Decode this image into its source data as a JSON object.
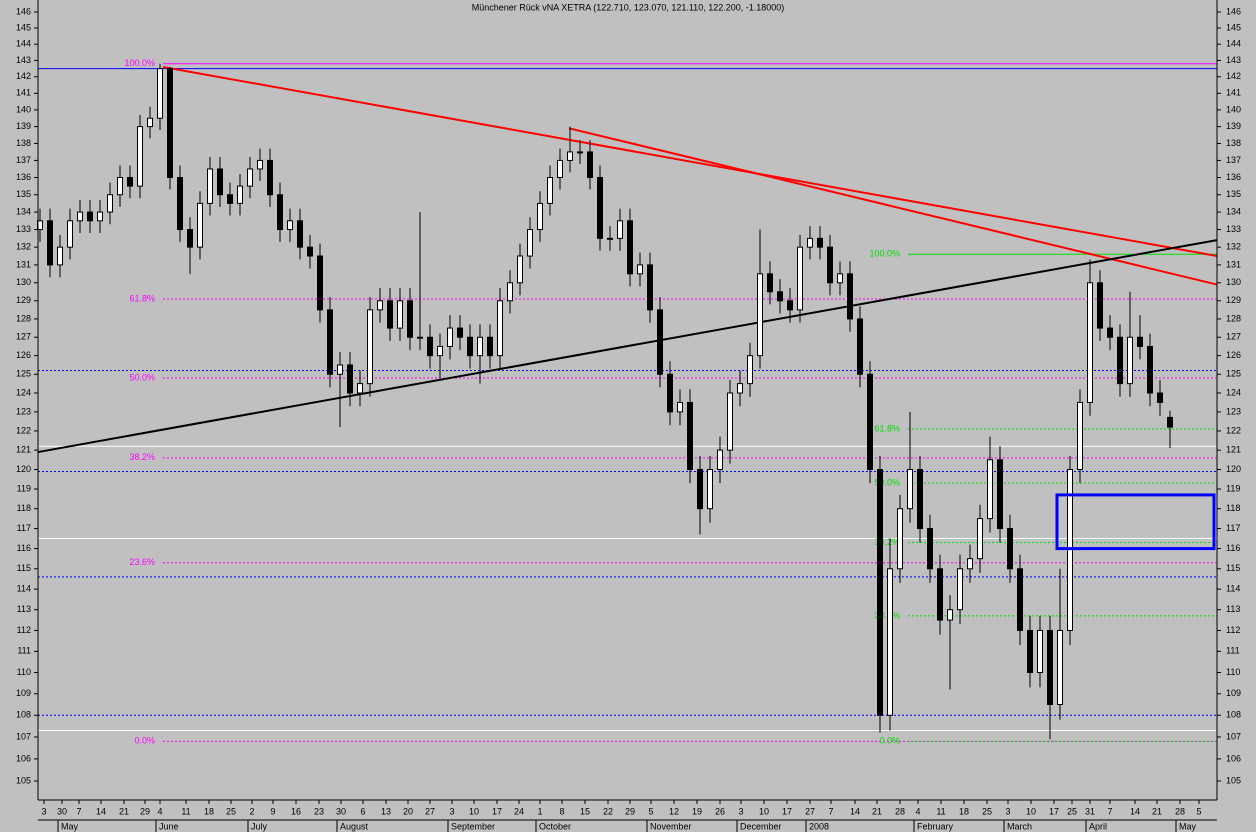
{
  "chart_data": {
    "type": "candlestick",
    "title": "Münchener Rück vNA  XETRA (122.710, 123.070, 121.110, 122.200, -1.18000)",
    "log_scale": true,
    "candle_up_color": "#ffffff",
    "candle_down_color": "#000000",
    "x": [
      0,
      1,
      2,
      3,
      4,
      5,
      6,
      7,
      8,
      9,
      10,
      11,
      12,
      13,
      14,
      15,
      16,
      17,
      18,
      19,
      20,
      21,
      22,
      23,
      24,
      25,
      26,
      27,
      28,
      29,
      30,
      31,
      32,
      33,
      34,
      35,
      36,
      37,
      38,
      39,
      40,
      41,
      42,
      43,
      44,
      45,
      46,
      47,
      48,
      49,
      50,
      51,
      52,
      53,
      54,
      55,
      56,
      57,
      58,
      59,
      60,
      61,
      62,
      63,
      64,
      65,
      66,
      67,
      68,
      69,
      70,
      71,
      72,
      73,
      74,
      75,
      76,
      77,
      78,
      79,
      80,
      81,
      82,
      83,
      84,
      85,
      86,
      87,
      88,
      89,
      90,
      91,
      92,
      93,
      94,
      95,
      96,
      97,
      98,
      99,
      100,
      101,
      102,
      103,
      104,
      105,
      106,
      107,
      108,
      109,
      110,
      111,
      112,
      113
    ],
    "open": [
      133,
      133.5,
      131,
      132,
      133.5,
      134,
      133.5,
      134,
      135,
      136,
      135.5,
      139,
      139.5,
      142.5,
      136,
      133,
      132,
      134.5,
      136.5,
      135,
      134.5,
      135.5,
      136.5,
      137,
      135,
      133,
      133.5,
      132,
      131.5,
      128.5,
      125,
      125.5,
      124,
      124.5,
      128.5,
      129,
      127.5,
      129,
      127,
      127,
      126,
      126.5,
      127.5,
      127,
      126,
      127,
      126,
      129,
      130,
      131.5,
      133,
      134.5,
      136,
      137,
      137.5,
      137.5,
      136,
      132.5,
      132.5,
      133.5,
      130.5,
      131,
      128.5,
      125,
      123,
      123.5,
      120,
      118,
      120,
      121,
      124,
      124.5,
      126,
      130.5,
      129.5,
      129,
      128.5,
      132,
      132.5,
      132,
      130,
      130.5,
      128,
      125,
      120,
      108,
      115,
      118,
      120,
      117,
      115,
      112.5,
      113,
      115,
      115.5,
      117.5,
      120.5,
      117,
      115,
      112,
      110,
      112,
      108.5,
      112,
      120,
      123.5,
      130,
      127.5,
      127,
      124.5,
      127,
      126.5,
      124,
      122.71
    ],
    "high": [
      134.2,
      134.2,
      132.7,
      134.2,
      134.7,
      134.7,
      134.7,
      135.7,
      136.7,
      136.7,
      139.7,
      140.2,
      142.8,
      142.6,
      136.7,
      133.7,
      135.2,
      137.2,
      137.2,
      135.7,
      136.2,
      137.2,
      137.7,
      137.7,
      135.7,
      134.2,
      134.2,
      132.7,
      132.2,
      129.2,
      126.2,
      126.2,
      125.2,
      129.2,
      129.7,
      129.7,
      129.7,
      129.7,
      134,
      127.7,
      127.2,
      128.2,
      128.2,
      127.7,
      127.7,
      127.7,
      129.7,
      130.7,
      132.2,
      133.7,
      135.2,
      136.7,
      137.7,
      139,
      138.2,
      138.2,
      136.7,
      133.2,
      134.2,
      134.2,
      131.7,
      131.7,
      129.2,
      125.7,
      124.2,
      124.2,
      120.7,
      120.7,
      121.7,
      124.7,
      125.2,
      126.7,
      133,
      131.2,
      130.2,
      129.7,
      132.7,
      133.2,
      133.2,
      132.7,
      131.2,
      131.2,
      128.7,
      125.7,
      120.7,
      116.5,
      118.7,
      123,
      120.7,
      117.7,
      115.7,
      113.7,
      115.7,
      116.2,
      118.2,
      121.7,
      121.2,
      117.7,
      115.7,
      112.7,
      112.7,
      112.7,
      115,
      120.7,
      124.2,
      131.3,
      130.7,
      128.2,
      127.7,
      129.5,
      128.2,
      127.2,
      124.7,
      123.07
    ],
    "low": [
      132.3,
      130.3,
      130.3,
      131.3,
      132.8,
      132.8,
      132.8,
      133.3,
      134.3,
      134.8,
      134.8,
      138.3,
      138.8,
      135.3,
      132.3,
      130.5,
      131.3,
      133.8,
      134.3,
      133.8,
      133.8,
      134.8,
      135.8,
      134.3,
      132.3,
      132.3,
      131.3,
      130.8,
      127.8,
      124.3,
      122.2,
      123.3,
      123.3,
      123.8,
      127.8,
      126.8,
      126.8,
      126.3,
      126.3,
      125.3,
      124.8,
      125.8,
      126.3,
      125.3,
      124.5,
      125.3,
      125.3,
      128.3,
      129.3,
      130.8,
      132.3,
      133.8,
      135.3,
      136.3,
      136.8,
      135.3,
      131.8,
      131.8,
      131.8,
      129.8,
      129.8,
      127.8,
      124.3,
      122.3,
      122.3,
      119.3,
      116.7,
      117.3,
      119.3,
      120.3,
      123.3,
      123.8,
      125.3,
      128.8,
      128.3,
      127.8,
      127.8,
      131.3,
      131.3,
      129.3,
      129.3,
      127.3,
      124.3,
      119.3,
      107.2,
      107.3,
      114.3,
      117.3,
      116.3,
      114.3,
      111.8,
      109.2,
      112.3,
      114.3,
      114.8,
      116.8,
      116.3,
      114.3,
      111.3,
      109.3,
      109.3,
      106.9,
      107.8,
      111.3,
      119.3,
      122.8,
      126.8,
      126.3,
      123.8,
      123.8,
      125.8,
      123.3,
      122.8,
      121.11
    ],
    "close": [
      133.5,
      131,
      132,
      133.5,
      134,
      133.5,
      134,
      135,
      136,
      135.5,
      139,
      139.5,
      142.5,
      136,
      133,
      132,
      134.5,
      136.5,
      135,
      134.5,
      135.5,
      136.5,
      137,
      135,
      133,
      133.5,
      132,
      131.5,
      128.5,
      125,
      125.5,
      124,
      124.5,
      128.5,
      129,
      127.5,
      129,
      127,
      127,
      126,
      126.5,
      127.5,
      127,
      126,
      127,
      126,
      129,
      130,
      131.5,
      133,
      134.5,
      136,
      137,
      137.5,
      137.5,
      136,
      132.5,
      132.5,
      133.5,
      130.5,
      131,
      128.5,
      125,
      123,
      123.5,
      120,
      118,
      120,
      121,
      124,
      124.5,
      126,
      130.5,
      129.5,
      129,
      128.5,
      132,
      132.5,
      132,
      130,
      130.5,
      128,
      125,
      120,
      108,
      115,
      118,
      120,
      117,
      115,
      112.5,
      113,
      115,
      115.5,
      117.5,
      120.5,
      117,
      115,
      112,
      110,
      112,
      108.5,
      112,
      120,
      123.5,
      130,
      127.5,
      127,
      124.5,
      127,
      126.5,
      124,
      123.5,
      122.2
    ],
    "xlim": [
      -0.2,
      117.7
    ],
    "ylim": [
      105,
      146
    ],
    "yticks": [
      105,
      106,
      107,
      108,
      109,
      110,
      111,
      112,
      113,
      114,
      115,
      116,
      117,
      118,
      119,
      120,
      121,
      122,
      123,
      124,
      125,
      126,
      127,
      128,
      129,
      130,
      131,
      132,
      133,
      134,
      135,
      136,
      137,
      138,
      139,
      140,
      141,
      142,
      143,
      144,
      145,
      146
    ],
    "xticks": [
      {
        "value": 0.4,
        "label": "3"
      },
      {
        "value": 2.2,
        "label": "30"
      },
      {
        "value": 3.9,
        "label": "7"
      },
      {
        "value": 6.1,
        "label": "14"
      },
      {
        "value": 8.4,
        "label": "21"
      },
      {
        "value": 10.5,
        "label": "29"
      },
      {
        "value": 12,
        "label": "4"
      },
      {
        "value": 14.6,
        "label": "11"
      },
      {
        "value": 16.9,
        "label": "18"
      },
      {
        "value": 19.1,
        "label": "25"
      },
      {
        "value": 21.2,
        "label": "2"
      },
      {
        "value": 23.3,
        "label": "9"
      },
      {
        "value": 25.6,
        "label": "16"
      },
      {
        "value": 27.9,
        "label": "23"
      },
      {
        "value": 30.1,
        "label": "30"
      },
      {
        "value": 32.3,
        "label": "6"
      },
      {
        "value": 34.6,
        "label": "13"
      },
      {
        "value": 36.8,
        "label": "20"
      },
      {
        "value": 39,
        "label": "27"
      },
      {
        "value": 41.2,
        "label": "3"
      },
      {
        "value": 43.4,
        "label": "10"
      },
      {
        "value": 45.7,
        "label": "17"
      },
      {
        "value": 47.9,
        "label": "24"
      },
      {
        "value": 50,
        "label": "1"
      },
      {
        "value": 52.2,
        "label": "8"
      },
      {
        "value": 54.5,
        "label": "15"
      },
      {
        "value": 56.8,
        "label": "22"
      },
      {
        "value": 59,
        "label": "29"
      },
      {
        "value": 61.1,
        "label": "5"
      },
      {
        "value": 63.4,
        "label": "12"
      },
      {
        "value": 65.7,
        "label": "19"
      },
      {
        "value": 68,
        "label": "26"
      },
      {
        "value": 70.1,
        "label": "3"
      },
      {
        "value": 72.4,
        "label": "10"
      },
      {
        "value": 74.7,
        "label": "17"
      },
      {
        "value": 77,
        "label": "27"
      },
      {
        "value": 79.1,
        "label": "7"
      },
      {
        "value": 81.5,
        "label": "14"
      },
      {
        "value": 83.7,
        "label": "21"
      },
      {
        "value": 86,
        "label": "28"
      },
      {
        "value": 87.8,
        "label": "4"
      },
      {
        "value": 90.1,
        "label": "11"
      },
      {
        "value": 92.4,
        "label": "18"
      },
      {
        "value": 94.7,
        "label": "25"
      },
      {
        "value": 96.8,
        "label": "3"
      },
      {
        "value": 99.1,
        "label": "10"
      },
      {
        "value": 101.4,
        "label": "17"
      },
      {
        "value": 103.2,
        "label": "25"
      },
      {
        "value": 105,
        "label": "31"
      },
      {
        "value": 107,
        "label": "7"
      },
      {
        "value": 109.5,
        "label": "14"
      },
      {
        "value": 111.7,
        "label": "21"
      },
      {
        "value": 114,
        "label": "28"
      },
      {
        "value": 115.9,
        "label": "5"
      }
    ],
    "month_ticks": [
      {
        "value": 2.2,
        "label": "May"
      },
      {
        "value": 12,
        "label": "June"
      },
      {
        "value": 21.2,
        "label": "July"
      },
      {
        "value": 30.1,
        "label": "August"
      },
      {
        "value": 41.2,
        "label": "September"
      },
      {
        "value": 50,
        "label": "October"
      },
      {
        "value": 61.1,
        "label": "November"
      },
      {
        "value": 70.1,
        "label": "December"
      },
      {
        "value": 77,
        "label": "2008"
      },
      {
        "value": 87.8,
        "label": "February"
      },
      {
        "value": 96.8,
        "label": "March"
      },
      {
        "value": 105,
        "label": "April"
      },
      {
        "value": 114,
        "label": "May"
      }
    ],
    "hlines": [
      {
        "value": 142.5,
        "color": "#0000ff",
        "style": "solid"
      },
      {
        "value": 125.2,
        "color": "#0000ff",
        "style": "dotted"
      },
      {
        "value": 119.9,
        "color": "#0000ff",
        "style": "dotted"
      },
      {
        "value": 114.6,
        "color": "#0000ff",
        "style": "dotted"
      },
      {
        "value": 108.0,
        "color": "#0000ff",
        "style": "dotted"
      },
      {
        "value": 121.2,
        "color": "#ffffff",
        "style": "solid"
      },
      {
        "value": 116.5,
        "color": "#ffffff",
        "style": "solid"
      },
      {
        "value": 107.3,
        "color": "#ffffff",
        "style": "solid"
      }
    ],
    "fib_sets": [
      {
        "color": "#ff00ff",
        "x_start": 12.3,
        "levels": [
          {
            "price": 142.8,
            "label": "100.0%"
          },
          {
            "price": 129.1,
            "label": "61.8%"
          },
          {
            "price": 124.8,
            "label": "50.0%"
          },
          {
            "price": 120.6,
            "label": "38.2%"
          },
          {
            "price": 115.3,
            "label": "23.6%"
          },
          {
            "price": 106.8,
            "label": "0.0%"
          }
        ]
      },
      {
        "color": "#00dd00",
        "x_start": 86.8,
        "levels": [
          {
            "price": 131.6,
            "label": "100.0%"
          },
          {
            "price": 122.1,
            "label": "61.8%"
          },
          {
            "price": 119.3,
            "label": "50.0%"
          },
          {
            "price": 116.3,
            "label": "38.2%"
          },
          {
            "price": 112.7,
            "label": "23.6%"
          },
          {
            "price": 106.8,
            "label": "0.0%"
          }
        ]
      }
    ],
    "trend_lines": [
      {
        "color": "#ff0000",
        "x": [
          12.3,
          117.7
        ],
        "y": [
          142.6,
          131.5
        ]
      },
      {
        "color": "#ff0000",
        "x": [
          52.9,
          117.7
        ],
        "y": [
          138.9,
          129.9
        ]
      },
      {
        "color": "#000000",
        "x": [
          -0.2,
          117.7
        ],
        "y": [
          120.9,
          132.4
        ]
      }
    ],
    "zone": {
      "color": "#0000ff",
      "x": [
        101.7,
        117.4
      ],
      "y": [
        118.7,
        116.0
      ]
    }
  }
}
